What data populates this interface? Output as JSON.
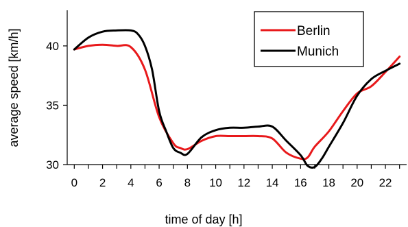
{
  "chart_data": {
    "type": "line",
    "title": "",
    "xlabel": "time of day [h]",
    "ylabel": "average speed [km/h]",
    "xlim": [
      -0.5,
      23.5
    ],
    "ylim": [
      30,
      43
    ],
    "x_ticks": [
      0,
      2,
      4,
      6,
      8,
      10,
      12,
      14,
      16,
      18,
      20,
      22
    ],
    "y_ticks": [
      30,
      35,
      40
    ],
    "x_minor_ticks": [
      1,
      3,
      5,
      7,
      9,
      11,
      13,
      15,
      17,
      19,
      21,
      23
    ],
    "grid": false,
    "legend_position": "top-right",
    "series": [
      {
        "name": "Berlin",
        "color": "#e8191b",
        "x": [
          0,
          1,
          2,
          3,
          4,
          5,
          6,
          7,
          7.5,
          8,
          9,
          10,
          11,
          12,
          13,
          14,
          15,
          16,
          16.5,
          17,
          18,
          19,
          20,
          21,
          22,
          23
        ],
        "y": [
          39.7,
          40.0,
          40.1,
          40.0,
          39.9,
          38.0,
          34.0,
          31.8,
          31.4,
          31.3,
          32.0,
          32.4,
          32.4,
          32.4,
          32.4,
          32.2,
          31.0,
          30.5,
          30.6,
          31.5,
          32.8,
          34.5,
          36.0,
          36.6,
          37.8,
          39.1
        ]
      },
      {
        "name": "Munich",
        "color": "#000000",
        "x": [
          0,
          1,
          2,
          3,
          4,
          4.5,
          5,
          5.5,
          6,
          6.5,
          7,
          7.5,
          8,
          9,
          10,
          11,
          12,
          13,
          14,
          15,
          16,
          16.5,
          17,
          17.5,
          18,
          19,
          20,
          21,
          22,
          23
        ],
        "y": [
          39.7,
          40.7,
          41.2,
          41.3,
          41.3,
          41.0,
          40.0,
          38.0,
          34.5,
          32.8,
          31.4,
          31.0,
          30.9,
          32.3,
          32.9,
          33.1,
          33.1,
          33.2,
          33.2,
          32.0,
          30.8,
          29.9,
          29.8,
          30.5,
          31.5,
          33.5,
          35.8,
          37.2,
          37.9,
          38.5
        ]
      }
    ]
  }
}
